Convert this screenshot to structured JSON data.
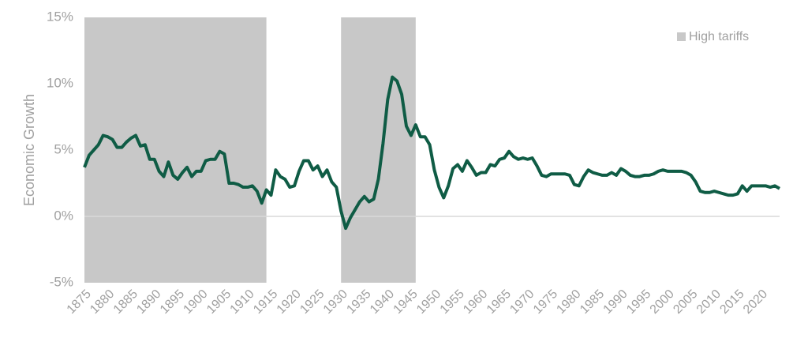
{
  "chart_data": {
    "type": "line",
    "y_label": "Economic Growth",
    "x": [
      1875,
      1876,
      1877,
      1878,
      1879,
      1880,
      1881,
      1882,
      1883,
      1884,
      1885,
      1886,
      1887,
      1888,
      1889,
      1890,
      1891,
      1892,
      1893,
      1894,
      1895,
      1896,
      1897,
      1898,
      1899,
      1900,
      1901,
      1902,
      1903,
      1904,
      1905,
      1906,
      1907,
      1908,
      1909,
      1910,
      1911,
      1912,
      1913,
      1914,
      1915,
      1916,
      1917,
      1918,
      1919,
      1920,
      1921,
      1922,
      1923,
      1924,
      1925,
      1926,
      1927,
      1928,
      1929,
      1930,
      1931,
      1932,
      1933,
      1934,
      1935,
      1936,
      1937,
      1938,
      1939,
      1940,
      1941,
      1942,
      1943,
      1944,
      1945,
      1946,
      1947,
      1948,
      1949,
      1950,
      1951,
      1952,
      1953,
      1954,
      1955,
      1956,
      1957,
      1958,
      1959,
      1960,
      1961,
      1962,
      1963,
      1964,
      1965,
      1966,
      1967,
      1968,
      1969,
      1970,
      1971,
      1972,
      1973,
      1974,
      1975,
      1976,
      1977,
      1978,
      1979,
      1980,
      1981,
      1982,
      1983,
      1984,
      1985,
      1986,
      1987,
      1988,
      1989,
      1990,
      1991,
      1992,
      1993,
      1994,
      1995,
      1996,
      1997,
      1998,
      1999,
      2000,
      2001,
      2002,
      2003,
      2004,
      2005,
      2006,
      2007,
      2008,
      2009,
      2010,
      2011,
      2012,
      2013,
      2014,
      2015,
      2016,
      2017,
      2018,
      2019,
      2020,
      2021,
      2022,
      2023,
      2024
    ],
    "series": [
      {
        "name": "Economic Growth",
        "color": "#0f5c45",
        "values": [
          3.7,
          4.6,
          5.0,
          5.4,
          6.1,
          6.0,
          5.8,
          5.2,
          5.2,
          5.6,
          5.9,
          6.1,
          5.3,
          5.4,
          4.3,
          4.3,
          3.4,
          3.0,
          4.1,
          3.1,
          2.8,
          3.3,
          3.7,
          3.0,
          3.4,
          3.4,
          4.2,
          4.3,
          4.3,
          4.9,
          4.7,
          2.5,
          2.5,
          2.4,
          2.2,
          2.2,
          2.3,
          1.9,
          1.0,
          2.0,
          1.6,
          3.5,
          3.0,
          2.8,
          2.2,
          2.3,
          3.4,
          4.2,
          4.2,
          3.5,
          3.8,
          3.0,
          3.5,
          2.6,
          2.2,
          0.4,
          -0.9,
          -0.1,
          0.5,
          1.1,
          1.5,
          1.1,
          1.3,
          2.8,
          5.5,
          8.8,
          10.5,
          10.2,
          9.2,
          6.8,
          6.1,
          6.9,
          6.0,
          6.0,
          5.4,
          3.5,
          2.2,
          1.4,
          2.3,
          3.6,
          3.9,
          3.4,
          4.2,
          3.7,
          3.1,
          3.3,
          3.3,
          3.9,
          3.8,
          4.3,
          4.4,
          4.9,
          4.5,
          4.3,
          4.4,
          4.3,
          4.4,
          3.8,
          3.1,
          3.0,
          3.2,
          3.2,
          3.2,
          3.2,
          3.1,
          2.4,
          2.3,
          3.0,
          3.5,
          3.3,
          3.2,
          3.1,
          3.1,
          3.3,
          3.1,
          3.6,
          3.4,
          3.1,
          3.0,
          3.0,
          3.1,
          3.1,
          3.2,
          3.4,
          3.5,
          3.4,
          3.4,
          3.4,
          3.4,
          3.3,
          3.1,
          2.6,
          1.9,
          1.8,
          1.8,
          1.9,
          1.8,
          1.7,
          1.6,
          1.6,
          1.7,
          2.3,
          1.9,
          2.3,
          2.3,
          2.3,
          2.3,
          2.2,
          2.3,
          2.1
        ]
      }
    ],
    "shaded_ranges": [
      [
        1875,
        1914
      ],
      [
        1930,
        1946
      ]
    ],
    "shade_color": "#c8c8c8",
    "shade_label": "High tariffs",
    "xlim": [
      1875,
      2024
    ],
    "xticks": [
      1875,
      1880,
      1885,
      1890,
      1895,
      1900,
      1905,
      1910,
      1915,
      1920,
      1925,
      1930,
      1935,
      1940,
      1945,
      1950,
      1955,
      1960,
      1965,
      1970,
      1975,
      1980,
      1985,
      1990,
      1995,
      2000,
      2005,
      2010,
      2015,
      2020
    ],
    "ylim": [
      -5,
      15
    ],
    "yticks": [
      {
        "value": -5,
        "label": "-5%"
      },
      {
        "value": 0,
        "label": "0%"
      },
      {
        "value": 5,
        "label": "5%"
      },
      {
        "value": 10,
        "label": "10%"
      },
      {
        "value": 15,
        "label": "15%"
      }
    ],
    "zero_line": true,
    "legend": "top-right"
  }
}
